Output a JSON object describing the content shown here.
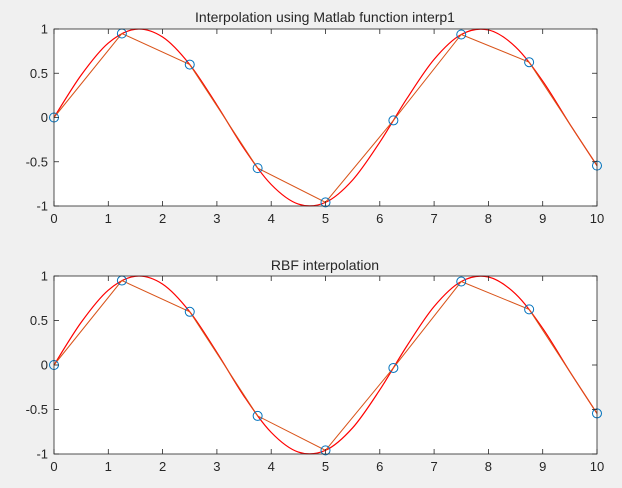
{
  "colors": {
    "figure_background": "#f0f0f0",
    "axes_background": "#ffffff",
    "axis_line": "#262626",
    "true_curve": "#ff0000",
    "interp_line": "#d95319",
    "marker": "#0072bd"
  },
  "chart_data": [
    {
      "type": "line",
      "title": "Interpolation using Matlab function interp1",
      "xlabel": "",
      "ylabel": "",
      "xlim": [
        0,
        10
      ],
      "ylim": [
        -1,
        1
      ],
      "xticks": [
        0,
        1,
        2,
        3,
        4,
        5,
        6,
        7,
        8,
        9,
        10
      ],
      "yticks": [
        -1,
        -0.5,
        0,
        0.5,
        1
      ],
      "xtick_labels": [
        "0",
        "1",
        "2",
        "3",
        "4",
        "5",
        "6",
        "7",
        "8",
        "9",
        "10"
      ],
      "ytick_labels": [
        "-1",
        "-0.5",
        "0",
        "0.5",
        "1"
      ],
      "grid": false,
      "series": [
        {
          "style": "smooth-curve",
          "x": [
            0,
            0.5,
            1,
            1.5,
            2,
            2.5,
            3,
            3.5,
            4,
            4.5,
            5,
            5.5,
            6,
            6.5,
            7,
            7.5,
            8,
            8.5,
            9,
            9.5,
            10
          ],
          "y": [
            0,
            0.479,
            0.841,
            0.997,
            0.909,
            0.598,
            0.141,
            -0.351,
            -0.757,
            -0.978,
            -0.959,
            -0.706,
            -0.279,
            0.215,
            0.657,
            0.938,
            0.989,
            0.798,
            0.412,
            -0.075,
            -0.544
          ]
        },
        {
          "style": "piecewise-linear",
          "x": [
            0,
            1.25,
            2.5,
            3.75,
            5,
            6.25,
            7.5,
            8.75,
            10
          ],
          "y": [
            0,
            0.949,
            0.598,
            -0.572,
            -0.959,
            -0.033,
            0.938,
            0.625,
            -0.544
          ]
        },
        {
          "style": "circle-markers",
          "x": [
            0,
            1.25,
            2.5,
            3.75,
            5,
            6.25,
            7.5,
            8.75,
            10
          ],
          "y": [
            0,
            0.949,
            0.598,
            -0.572,
            -0.959,
            -0.033,
            0.938,
            0.625,
            -0.544
          ]
        }
      ]
    },
    {
      "type": "line",
      "title": "RBF interpolation",
      "xlabel": "",
      "ylabel": "",
      "xlim": [
        0,
        10
      ],
      "ylim": [
        -1,
        1
      ],
      "xticks": [
        0,
        1,
        2,
        3,
        4,
        5,
        6,
        7,
        8,
        9,
        10
      ],
      "yticks": [
        -1,
        -0.5,
        0,
        0.5,
        1
      ],
      "xtick_labels": [
        "0",
        "1",
        "2",
        "3",
        "4",
        "5",
        "6",
        "7",
        "8",
        "9",
        "10"
      ],
      "ytick_labels": [
        "-1",
        "-0.5",
        "0",
        "0.5",
        "1"
      ],
      "grid": false,
      "series": [
        {
          "style": "smooth-curve",
          "x": [
            0,
            0.5,
            1,
            1.5,
            2,
            2.5,
            3,
            3.5,
            4,
            4.5,
            5,
            5.5,
            6,
            6.5,
            7,
            7.5,
            8,
            8.5,
            9,
            9.5,
            10
          ],
          "y": [
            0,
            0.479,
            0.841,
            0.997,
            0.909,
            0.598,
            0.141,
            -0.351,
            -0.757,
            -0.978,
            -0.959,
            -0.706,
            -0.279,
            0.215,
            0.657,
            0.938,
            0.989,
            0.798,
            0.412,
            -0.075,
            -0.544
          ]
        },
        {
          "style": "piecewise-linear",
          "x": [
            0,
            1.25,
            2.5,
            3.75,
            5,
            6.25,
            7.5,
            8.75,
            10
          ],
          "y": [
            0,
            0.949,
            0.598,
            -0.572,
            -0.959,
            -0.033,
            0.938,
            0.625,
            -0.544
          ]
        },
        {
          "style": "circle-markers",
          "x": [
            0,
            1.25,
            2.5,
            3.75,
            5,
            6.25,
            7.5,
            8.75,
            10
          ],
          "y": [
            0,
            0.949,
            0.598,
            -0.572,
            -0.959,
            -0.033,
            0.938,
            0.625,
            -0.544
          ]
        }
      ]
    }
  ]
}
